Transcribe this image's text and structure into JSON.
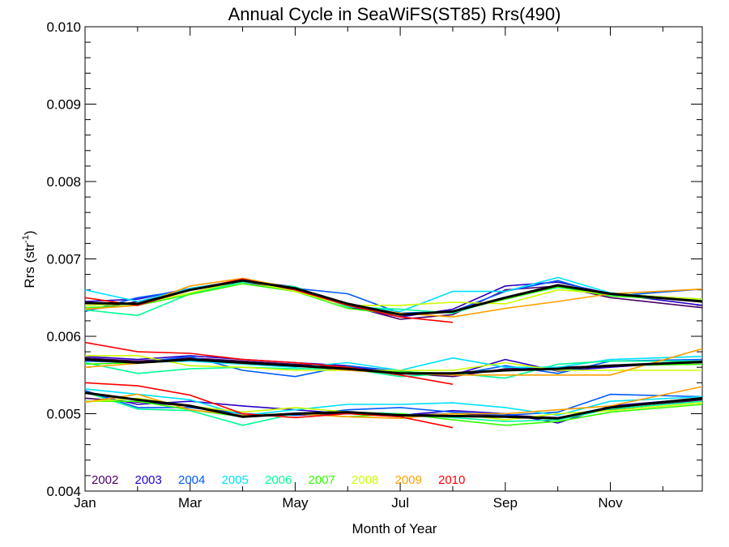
{
  "chart_data": {
    "type": "line",
    "title": "Annual Cycle in SeaWiFS(ST85) Rrs(490)",
    "xlabel": "Month of Year",
    "ylabel_main": "Rrs (str",
    "ylabel_sup": "-1",
    "ylabel_close": ")",
    "xlim": [
      1,
      12.75
    ],
    "ylim": [
      0.004,
      0.01
    ],
    "xticks": [
      {
        "value": 1,
        "label": "Jan"
      },
      {
        "value": 3,
        "label": "Mar"
      },
      {
        "value": 5,
        "label": "May"
      },
      {
        "value": 7,
        "label": "Jul"
      },
      {
        "value": 9,
        "label": "Sep"
      },
      {
        "value": 11,
        "label": "Nov"
      }
    ],
    "yticks": [
      {
        "value": 0.004,
        "label": "0.004"
      },
      {
        "value": 0.005,
        "label": "0.005"
      },
      {
        "value": 0.006,
        "label": "0.006"
      },
      {
        "value": 0.007,
        "label": "0.007"
      },
      {
        "value": 0.008,
        "label": "0.008"
      },
      {
        "value": 0.009,
        "label": "0.009"
      },
      {
        "value": 0.01,
        "label": "0.010"
      }
    ],
    "legend_position": "bottom-left",
    "x": [
      1,
      2,
      3,
      4,
      5,
      6,
      7,
      8,
      9,
      10,
      11,
      12.75
    ],
    "series": [
      {
        "name": "2002",
        "color": "#4b0066",
        "groups": [
          [
            0.00633,
            0.00645,
            0.0066,
            0.0067,
            0.0066,
            0.0064,
            0.00622,
            0.00628,
            0.0066,
            0.00665,
            0.0065,
            0.00637
          ],
          [
            0.00572,
            0.00568,
            0.00572,
            0.00568,
            0.00564,
            0.0056,
            0.00552,
            0.00548,
            0.00558,
            0.0056,
            0.00562,
            0.00566
          ],
          [
            0.0052,
            0.00515,
            0.0051,
            0.005,
            0.00498,
            0.005,
            0.00498,
            0.005,
            0.00498,
            0.00495,
            0.00505,
            0.00518
          ]
        ]
      },
      {
        "name": "2003",
        "color": "#2a00c8",
        "groups": [
          [
            0.00645,
            0.00648,
            0.00662,
            0.00672,
            0.00664,
            0.00638,
            0.00625,
            0.00635,
            0.00665,
            0.0067,
            0.00655,
            0.0064
          ],
          [
            0.00574,
            0.0057,
            0.00575,
            0.0057,
            0.00566,
            0.00562,
            0.00552,
            0.0055,
            0.0057,
            0.00555,
            0.0056,
            0.00568
          ],
          [
            0.00527,
            0.00512,
            0.00516,
            0.0051,
            0.00505,
            0.005,
            0.00498,
            0.00504,
            0.005,
            0.00488,
            0.0051,
            0.0052
          ]
        ]
      },
      {
        "name": "2004",
        "color": "#005aff",
        "groups": [
          [
            0.00632,
            0.0065,
            0.0066,
            0.0067,
            0.00662,
            0.00655,
            0.0063,
            0.00632,
            0.00658,
            0.00672,
            0.00652,
            0.00661
          ],
          [
            0.00568,
            0.00566,
            0.00574,
            0.00556,
            0.00548,
            0.00562,
            0.00555,
            0.0055,
            0.00562,
            0.00552,
            0.00568,
            0.0057
          ],
          [
            0.0053,
            0.00508,
            0.00508,
            0.005,
            0.00498,
            0.00505,
            0.00508,
            0.00502,
            0.00498,
            0.00502,
            0.00525,
            0.00522
          ]
        ]
      },
      {
        "name": "2005",
        "color": "#00e0ff",
        "groups": [
          [
            0.0066,
            0.00645,
            0.00662,
            0.00672,
            0.00662,
            0.0064,
            0.00632,
            0.00658,
            0.00658,
            0.00676,
            0.00656,
            0.00646
          ],
          [
            0.0057,
            0.00566,
            0.00568,
            0.00564,
            0.0056,
            0.00566,
            0.00556,
            0.00572,
            0.0056,
            0.0056,
            0.0057,
            0.00574
          ],
          [
            0.00532,
            0.00525,
            0.00518,
            0.00498,
            0.00505,
            0.00512,
            0.00512,
            0.00514,
            0.00508,
            0.00498,
            0.00516,
            0.00522
          ]
        ]
      },
      {
        "name": "2006",
        "color": "#00ff96",
        "groups": [
          [
            0.00634,
            0.00627,
            0.00655,
            0.0067,
            0.00664,
            0.00638,
            0.00635,
            0.0063,
            0.0065,
            0.00663,
            0.00655,
            0.00648
          ],
          [
            0.00566,
            0.00552,
            0.00558,
            0.0056,
            0.00558,
            0.00558,
            0.00548,
            0.00552,
            0.00546,
            0.00564,
            0.00568,
            0.00568
          ],
          [
            0.00528,
            0.00506,
            0.00504,
            0.00485,
            0.005,
            0.00502,
            0.005,
            0.00495,
            0.0049,
            0.00492,
            0.00506,
            0.00516
          ]
        ]
      },
      {
        "name": "2007",
        "color": "#30ff00",
        "groups": [
          [
            0.00637,
            0.0064,
            0.00654,
            0.00668,
            0.00658,
            0.00636,
            0.00628,
            0.00632,
            0.00648,
            0.00664,
            0.00652,
            0.00646
          ],
          [
            0.00564,
            0.00566,
            0.0057,
            0.00566,
            0.00562,
            0.00558,
            0.00554,
            0.00552,
            0.00556,
            0.00558,
            0.00562,
            0.00564
          ],
          [
            0.00516,
            0.00516,
            0.00505,
            0.00496,
            0.005,
            0.00496,
            0.005,
            0.00492,
            0.00485,
            0.0049,
            0.00502,
            0.00512
          ]
        ]
      },
      {
        "name": "2008",
        "color": "#ccff00",
        "groups": [
          [
            0.0064,
            0.00642,
            0.00656,
            0.00672,
            0.00658,
            0.0064,
            0.0064,
            0.00644,
            0.00642,
            0.0066,
            0.00655,
            0.00648
          ],
          [
            0.00575,
            0.00575,
            0.00562,
            0.0056,
            0.00556,
            0.00556,
            0.00556,
            0.00556,
            0.00566,
            0.00556,
            0.00556,
            0.00556
          ],
          [
            0.00515,
            0.0052,
            0.0051,
            0.00502,
            0.00508,
            0.00502,
            0.00496,
            0.005,
            0.00492,
            0.005,
            0.00504,
            0.00514
          ]
        ]
      },
      {
        "name": "2009",
        "color": "#ffa000",
        "groups": [
          [
            0.00635,
            0.0064,
            0.00665,
            0.00675,
            0.00662,
            0.0064,
            0.0063,
            0.00625,
            0.00636,
            0.00645,
            0.00655,
            0.00661
          ],
          [
            0.0056,
            0.00565,
            0.0057,
            0.00565,
            0.00562,
            0.00556,
            0.00552,
            0.0055,
            0.0055,
            0.0055,
            0.0055,
            0.00584
          ],
          [
            0.00515,
            0.00525,
            0.00505,
            0.00498,
            0.005,
            0.00496,
            0.00494,
            0.005,
            0.005,
            0.00505,
            0.0051,
            0.00535
          ]
        ]
      },
      {
        "name": "2010",
        "color": "#ff0000",
        "groups": [
          [
            0.0065,
            0.0064,
            0.0066,
            0.00674,
            0.0066,
            0.0064,
            0.00625,
            0.00618
          ],
          [
            0.00592,
            0.0058,
            0.00578,
            0.0057,
            0.00566,
            0.0056,
            0.0055,
            0.00538
          ],
          [
            0.0054,
            0.00536,
            0.00524,
            0.005,
            0.00495,
            0.005,
            0.00496,
            0.00482
          ]
        ]
      }
    ],
    "climatology": {
      "color": "#000000",
      "groups": [
        [
          0.00643,
          0.00642,
          0.0066,
          0.00672,
          0.00662,
          0.00642,
          0.00628,
          0.00632,
          0.0065,
          0.00666,
          0.00655,
          0.00645
        ],
        [
          0.0057,
          0.00566,
          0.0057,
          0.00566,
          0.00562,
          0.00558,
          0.00552,
          0.00552,
          0.00556,
          0.00558,
          0.00562,
          0.00567
        ],
        [
          0.00527,
          0.00518,
          0.0051,
          0.00496,
          0.005,
          0.00502,
          0.00498,
          0.00497,
          0.00496,
          0.00494,
          0.00508,
          0.0052
        ]
      ]
    }
  }
}
